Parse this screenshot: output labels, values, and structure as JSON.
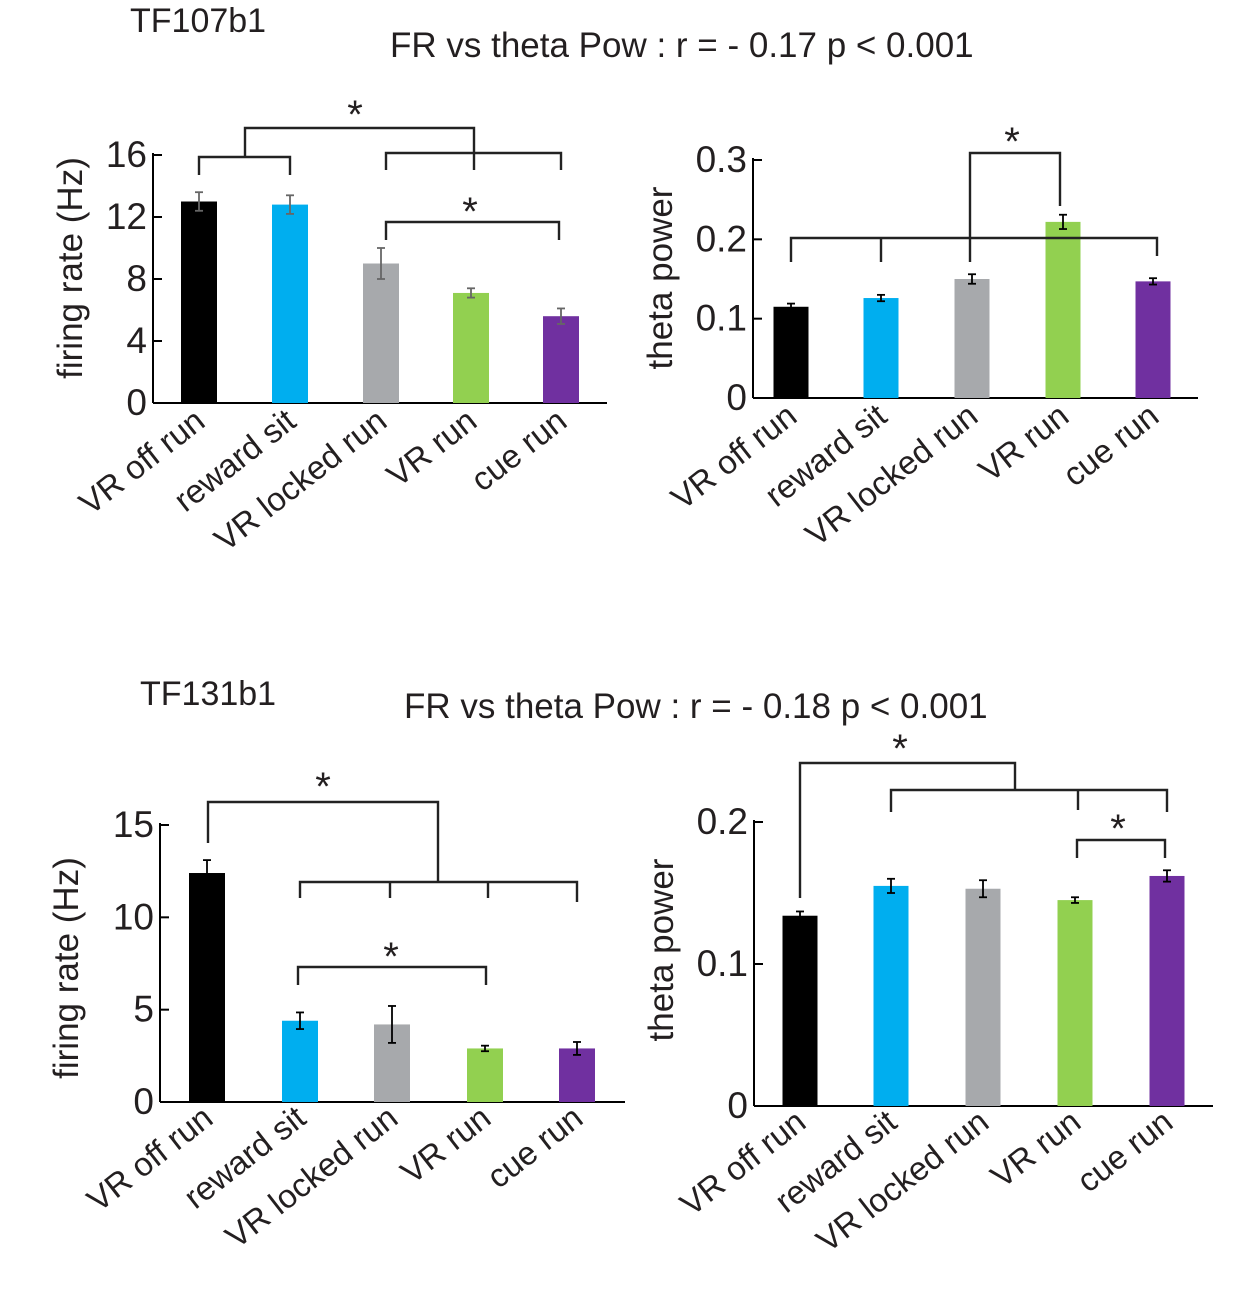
{
  "figure": {
    "groups": [
      {
        "id": "TF107b1",
        "label": "TF107b1",
        "caption": "FR vs theta Pow : r = - 0.17  p < 0.001"
      },
      {
        "id": "TF131b1",
        "label": "TF131b1",
        "caption": "FR vs theta Pow : r = - 0.18  p < 0.001"
      }
    ],
    "significance_marker": "*"
  },
  "colors": {
    "VR off run": "#000000",
    "reward sit": "#00aeef",
    "VR locked run": "#a7a9ac",
    "VR run": "#92d050",
    "cue run": "#7030a0"
  },
  "chart_data": [
    {
      "id": "fr1",
      "group": "TF107b1",
      "type": "bar",
      "ylabel": "firing rate (Hz)",
      "categories": [
        "VR off run",
        "reward sit",
        "VR locked run",
        "VR run",
        "cue run"
      ],
      "values": [
        13.0,
        12.8,
        9.0,
        7.1,
        5.6
      ],
      "errors": [
        0.6,
        0.6,
        1.0,
        0.3,
        0.5
      ],
      "ylim": [
        0,
        16
      ],
      "yticks": [
        0,
        4,
        8,
        12,
        16
      ],
      "ytick_labels": [
        "0",
        "4",
        "8",
        "12",
        "16"
      ],
      "significance": [
        {
          "from_groups": [
            [
              0,
              1
            ],
            [
              2,
              3,
              4
            ]
          ],
          "label": "*"
        },
        {
          "from_groups": [
            [
              2
            ],
            [
              4
            ]
          ],
          "label": "*"
        }
      ]
    },
    {
      "id": "theta1",
      "group": "TF107b1",
      "type": "bar",
      "ylabel": "theta power",
      "categories": [
        "VR off run",
        "reward sit",
        "VR locked run",
        "VR run",
        "cue run"
      ],
      "values": [
        0.115,
        0.126,
        0.15,
        0.222,
        0.147
      ],
      "errors": [
        0.004,
        0.004,
        0.006,
        0.009,
        0.004
      ],
      "ylim": [
        0,
        0.3
      ],
      "yticks": [
        0,
        0.1,
        0.2,
        0.3
      ],
      "ytick_labels": [
        "0",
        "0.1",
        "0.2",
        "0.3"
      ],
      "significance": [
        {
          "from_groups": [
            [
              0,
              1,
              2,
              4
            ],
            [
              3
            ]
          ],
          "label": "*"
        }
      ]
    },
    {
      "id": "fr2",
      "group": "TF131b1",
      "type": "bar",
      "ylabel": "firing rate (Hz)",
      "categories": [
        "VR off run",
        "reward sit",
        "VR locked run",
        "VR run",
        "cue run"
      ],
      "values": [
        12.4,
        4.4,
        4.2,
        2.9,
        2.9
      ],
      "errors": [
        0.7,
        0.45,
        1.0,
        0.15,
        0.35
      ],
      "ylim": [
        0,
        15
      ],
      "yticks": [
        0,
        5,
        10,
        15
      ],
      "ytick_labels": [
        "0",
        "5",
        "10",
        "15"
      ],
      "significance": [
        {
          "from_groups": [
            [
              0
            ],
            [
              1,
              2,
              3,
              4
            ]
          ],
          "label": "*"
        },
        {
          "from_groups": [
            [
              1
            ],
            [
              3
            ]
          ],
          "label": "*"
        }
      ]
    },
    {
      "id": "theta2",
      "group": "TF131b1",
      "type": "bar",
      "ylabel": "theta power",
      "categories": [
        "VR off run",
        "reward sit",
        "VR locked run",
        "VR run",
        "cue run"
      ],
      "values": [
        0.134,
        0.155,
        0.153,
        0.145,
        0.162
      ],
      "errors": [
        0.003,
        0.005,
        0.006,
        0.002,
        0.004
      ],
      "ylim": [
        0,
        0.2
      ],
      "yticks": [
        0,
        0.1,
        0.2
      ],
      "ytick_labels": [
        "0",
        "0.1",
        "0.2"
      ],
      "significance": [
        {
          "from_groups": [
            [
              0
            ],
            [
              1,
              2,
              3,
              4
            ]
          ],
          "label": "*"
        },
        {
          "from_groups": [
            [
              3
            ],
            [
              4
            ]
          ],
          "label": "*"
        }
      ]
    }
  ]
}
